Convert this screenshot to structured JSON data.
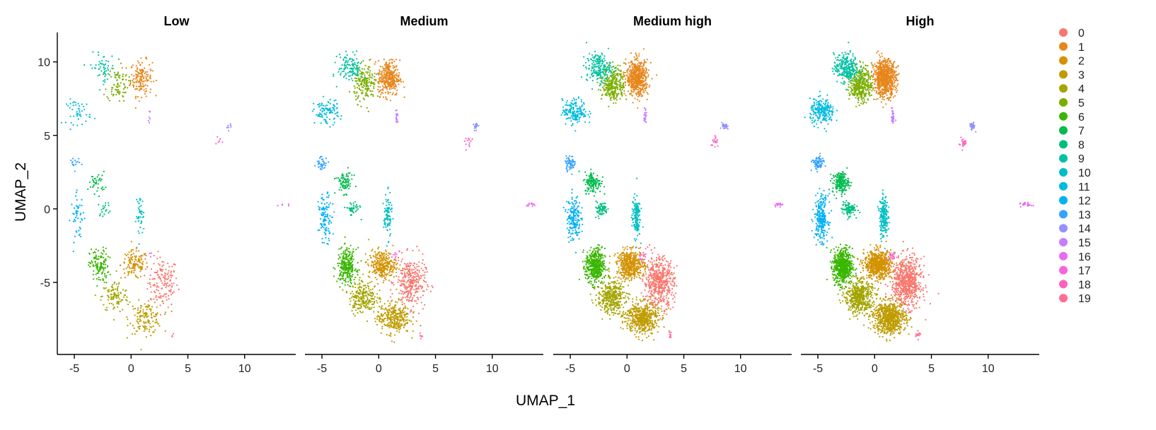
{
  "chart_data": {
    "type": "scatter",
    "xlabel": "UMAP_1",
    "ylabel": "UMAP_2",
    "xlim": [
      -6.5,
      14.5
    ],
    "ylim": [
      -9.9,
      12.0
    ],
    "x_ticks": [
      -5,
      0,
      5,
      10
    ],
    "y_ticks": [
      -5,
      0,
      5,
      10
    ],
    "grid": false,
    "legend_position": "right",
    "panels": [
      {
        "title": "Low",
        "density": 0.28
      },
      {
        "title": "Medium",
        "density": 0.6
      },
      {
        "title": "Medium high",
        "density": 1.0
      },
      {
        "title": "High",
        "density": 1.35
      }
    ],
    "clusters": [
      {
        "name": "0",
        "color": "#F8766D",
        "center": [
          2.8,
          -5.0
        ],
        "spread": [
          1.1,
          1.4
        ]
      },
      {
        "name": "1",
        "color": "#E7861B",
        "center": [
          0.9,
          8.9
        ],
        "spread": [
          0.8,
          1.0
        ]
      },
      {
        "name": "2",
        "color": "#D39200",
        "center": [
          0.3,
          -3.8
        ],
        "spread": [
          1.0,
          0.8
        ]
      },
      {
        "name": "3",
        "color": "#BE9C00",
        "center": [
          1.3,
          -7.4
        ],
        "spread": [
          1.2,
          0.9
        ]
      },
      {
        "name": "4",
        "color": "#A3A500",
        "center": [
          -1.4,
          -6.0
        ],
        "spread": [
          1.0,
          0.9
        ]
      },
      {
        "name": "5",
        "color": "#7CAE00",
        "center": [
          -1.2,
          8.5
        ],
        "spread": [
          0.8,
          1.0
        ]
      },
      {
        "name": "6",
        "color": "#39B600",
        "center": [
          -2.8,
          -3.9
        ],
        "spread": [
          0.7,
          1.0
        ]
      },
      {
        "name": "7",
        "color": "#00BB4E",
        "center": [
          -3.0,
          1.8
        ],
        "spread": [
          0.6,
          0.6
        ]
      },
      {
        "name": "8",
        "color": "#00BF7D",
        "center": [
          -2.3,
          0.0
        ],
        "spread": [
          0.5,
          0.4
        ]
      },
      {
        "name": "9",
        "color": "#00C1A3",
        "center": [
          -2.5,
          9.6
        ],
        "spread": [
          0.9,
          0.8
        ]
      },
      {
        "name": "10",
        "color": "#00BFC4",
        "center": [
          0.8,
          -0.5
        ],
        "spread": [
          0.3,
          1.2
        ]
      },
      {
        "name": "11",
        "color": "#00BAE0",
        "center": [
          -4.6,
          6.6
        ],
        "spread": [
          0.9,
          0.7
        ]
      },
      {
        "name": "12",
        "color": "#00B0F6",
        "center": [
          -4.7,
          -0.6
        ],
        "spread": [
          0.5,
          1.3
        ]
      },
      {
        "name": "13",
        "color": "#35A2FF",
        "center": [
          -5.0,
          3.1
        ],
        "spread": [
          0.4,
          0.4
        ]
      },
      {
        "name": "14",
        "color": "#9590FF",
        "center": [
          8.6,
          5.6
        ],
        "spread": [
          0.2,
          0.2
        ]
      },
      {
        "name": "15",
        "color": "#C77CFF",
        "center": [
          1.6,
          6.3
        ],
        "spread": [
          0.1,
          0.5
        ]
      },
      {
        "name": "16",
        "color": "#E76BF3",
        "center": [
          13.4,
          0.3
        ],
        "spread": [
          0.4,
          0.1
        ]
      },
      {
        "name": "17",
        "color": "#FA62DB",
        "center": [
          1.5,
          -3.2
        ],
        "spread": [
          0.3,
          0.3
        ]
      },
      {
        "name": "18",
        "color": "#FF62BC",
        "center": [
          7.8,
          4.5
        ],
        "spread": [
          0.3,
          0.3
        ]
      },
      {
        "name": "19",
        "color": "#FF6C91",
        "center": [
          3.8,
          -8.6
        ],
        "spread": [
          0.2,
          0.2
        ]
      }
    ],
    "cluster_sizes": [
      520,
      560,
      480,
      520,
      380,
      300,
      440,
      140,
      70,
      200,
      150,
      170,
      180,
      60,
      30,
      25,
      20,
      15,
      20,
      10
    ]
  }
}
